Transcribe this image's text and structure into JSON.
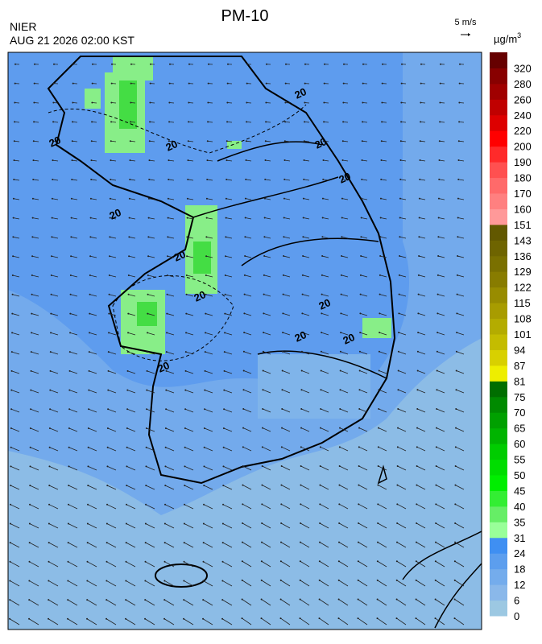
{
  "header": {
    "title": "PM-10",
    "agency": "NIER",
    "timestamp": "AUG 21 2026 02:00 KST",
    "wind_scale": "5 m/s",
    "unit": "µg/m",
    "unit_power": "3"
  },
  "colorbar": {
    "labels": [
      "0",
      "6",
      "12",
      "18",
      "24",
      "31",
      "35",
      "40",
      "45",
      "50",
      "55",
      "60",
      "65",
      "70",
      "75",
      "81",
      "87",
      "94",
      "101",
      "108",
      "115",
      "122",
      "129",
      "136",
      "143",
      "151",
      "160",
      "170",
      "180",
      "190",
      "200",
      "220",
      "240",
      "260",
      "280",
      "320"
    ],
    "colors": [
      "#9cc8e2",
      "#8ab8ea",
      "#74acec",
      "#5c9eee",
      "#3f8ff2",
      "#99ff99",
      "#66ee66",
      "#33ee33",
      "#00ee00",
      "#00dd00",
      "#00cc00",
      "#00b400",
      "#00a000",
      "#008a00",
      "#006e00",
      "#eeee00",
      "#d8d000",
      "#c4bc00",
      "#b4ac00",
      "#a89c00",
      "#988c00",
      "#887c00",
      "#7a7000",
      "#6e6400",
      "#625800",
      "#ff9999",
      "#ff8080",
      "#ff6a6a",
      "#ff5050",
      "#ff2a2a",
      "#ff0000",
      "#dd0000",
      "#c00000",
      "#a00000",
      "#880000",
      "#660000"
    ]
  },
  "map": {
    "contour_labels": [
      "20",
      "20",
      "20",
      "20",
      "20",
      "20",
      "20",
      "20",
      "20",
      "20",
      "20",
      "20"
    ]
  }
}
